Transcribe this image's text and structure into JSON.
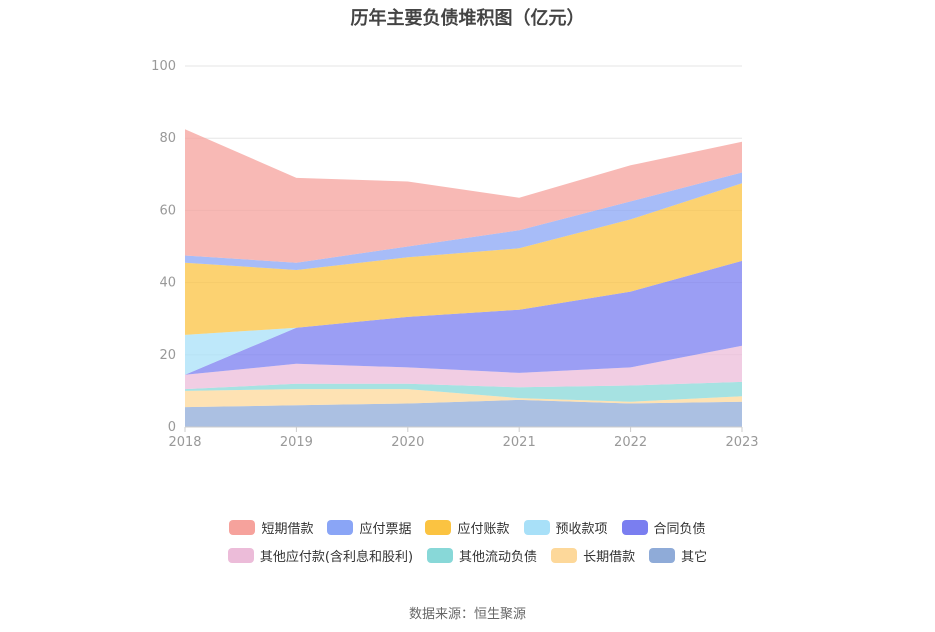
{
  "chart_data": {
    "type": "area",
    "stacked": true,
    "title": "历年主要负债堆积图（亿元）",
    "x": [
      "2018",
      "2019",
      "2020",
      "2021",
      "2022",
      "2023"
    ],
    "ylim": [
      0,
      100
    ],
    "yticks": [
      "0",
      "20",
      "40",
      "60",
      "80",
      "100"
    ],
    "grid": true,
    "legend_position": "bottom",
    "series": [
      {
        "name": "其它",
        "color": "#8fabd8",
        "values": [
          5.5,
          6.0,
          6.5,
          7.5,
          6.5,
          7.0
        ]
      },
      {
        "name": "长期借款",
        "color": "#fdd89a",
        "values": [
          4.5,
          4.5,
          4.0,
          0.5,
          0.5,
          1.5
        ]
      },
      {
        "name": "其他流动负债",
        "color": "#88d8d8",
        "values": [
          0.5,
          1.5,
          1.5,
          3.0,
          4.5,
          4.0
        ]
      },
      {
        "name": "其他应付款(含利息和股利)",
        "color": "#ecbcd9",
        "values": [
          4.0,
          5.5,
          4.5,
          4.0,
          5.0,
          10.0
        ]
      },
      {
        "name": "合同负债",
        "color": "#7a7ef0",
        "values": [
          0.0,
          10.0,
          14.0,
          17.5,
          21.0,
          23.5
        ]
      },
      {
        "name": "预收款项",
        "color": "#a8e0f8",
        "values": [
          11.0,
          0.0,
          0.0,
          0.0,
          0.0,
          0.0
        ]
      },
      {
        "name": "应付账款",
        "color": "#fbc341",
        "values": [
          20.0,
          16.0,
          16.5,
          17.0,
          20.0,
          21.5
        ]
      },
      {
        "name": "应付票据",
        "color": "#8aa5f6",
        "values": [
          2.0,
          2.0,
          3.0,
          5.0,
          5.0,
          3.0
        ]
      },
      {
        "name": "短期借款",
        "color": "#f6a29c",
        "values": [
          35.0,
          23.5,
          18.0,
          9.0,
          10.0,
          8.5
        ]
      }
    ]
  },
  "legend": {
    "row1": [
      {
        "label": "短期借款",
        "color": "#f6a29c"
      },
      {
        "label": "应付票据",
        "color": "#8aa5f6"
      },
      {
        "label": "应付账款",
        "color": "#fbc341"
      },
      {
        "label": "预收款项",
        "color": "#a8e0f8"
      },
      {
        "label": "合同负债",
        "color": "#7a7ef0"
      }
    ],
    "row2": [
      {
        "label": "其他应付款(含利息和股利)",
        "color": "#ecbcd9"
      },
      {
        "label": "其他流动负债",
        "color": "#88d8d8"
      },
      {
        "label": "长期借款",
        "color": "#fdd89a"
      },
      {
        "label": "其它",
        "color": "#8fabd8"
      }
    ]
  },
  "source": "数据来源：恒生聚源"
}
